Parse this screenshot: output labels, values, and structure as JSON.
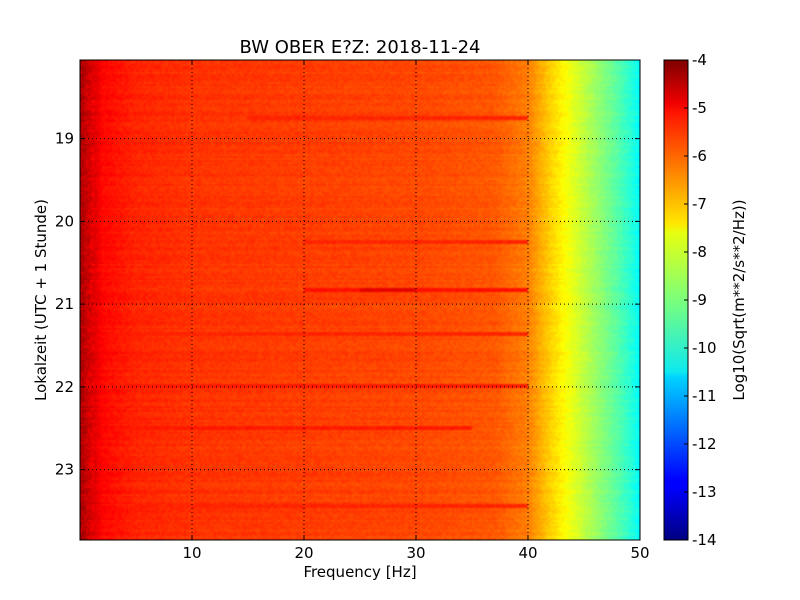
{
  "chart_data": {
    "type": "heatmap",
    "title": "BW OBER E?Z: 2018-11-24",
    "xlabel": "Frequency [Hz]",
    "ylabel": "Lokalzeit (UTC + 1 Stunde)",
    "colorbar_label": "Log10(Sqrt(m**2/s**2/Hz))",
    "colormap": "jet",
    "xlim": [
      0,
      50
    ],
    "ylim_hours": [
      18.05,
      23.85
    ],
    "y_inverted": true,
    "grid": true,
    "x_ticks": [
      {
        "value": 10,
        "label": "10"
      },
      {
        "value": 20,
        "label": "20"
      },
      {
        "value": 30,
        "label": "30"
      },
      {
        "value": 40,
        "label": "40"
      },
      {
        "value": 50,
        "label": "50"
      }
    ],
    "y_ticks": [
      {
        "value": 19,
        "label": "19"
      },
      {
        "value": 20,
        "label": "20"
      },
      {
        "value": 21,
        "label": "21"
      },
      {
        "value": 22,
        "label": "22"
      },
      {
        "value": 23,
        "label": "23"
      }
    ],
    "colorbar_range": [
      -14,
      -4
    ],
    "colorbar_ticks": [
      {
        "value": -4,
        "label": "-4"
      },
      {
        "value": -5,
        "label": "-5"
      },
      {
        "value": -6,
        "label": "-6"
      },
      {
        "value": -7,
        "label": "-7"
      },
      {
        "value": -8,
        "label": "-8"
      },
      {
        "value": -9,
        "label": "-9"
      },
      {
        "value": -10,
        "label": "-10"
      },
      {
        "value": -11,
        "label": "-11"
      },
      {
        "value": -12,
        "label": "-12"
      },
      {
        "value": -13,
        "label": "-13"
      },
      {
        "value": -14,
        "label": "-14"
      }
    ],
    "frequency_profile": [
      {
        "freq": 0,
        "value": -4.3
      },
      {
        "freq": 1,
        "value": -4.8
      },
      {
        "freq": 2,
        "value": -5.3
      },
      {
        "freq": 5,
        "value": -5.6
      },
      {
        "freq": 10,
        "value": -5.75
      },
      {
        "freq": 20,
        "value": -5.85
      },
      {
        "freq": 30,
        "value": -5.95
      },
      {
        "freq": 37,
        "value": -6.1
      },
      {
        "freq": 40,
        "value": -6.5
      },
      {
        "freq": 42,
        "value": -7.3
      },
      {
        "freq": 44,
        "value": -8.0
      },
      {
        "freq": 46,
        "value": -8.7
      },
      {
        "freq": 48,
        "value": -9.4
      },
      {
        "freq": 49.5,
        "value": -10.0
      },
      {
        "freq": 50,
        "value": -10.3
      }
    ],
    "band_features": [
      {
        "hour": 20.82,
        "freq_range": [
          20,
          40
        ],
        "value": -5.4
      },
      {
        "hour": 20.84,
        "freq_range": [
          25,
          30
        ],
        "value": -5.0
      },
      {
        "hour": 22.0,
        "freq_range": [
          0,
          40
        ],
        "value": -5.5
      },
      {
        "hour": 22.5,
        "freq_range": [
          0,
          35
        ],
        "value": -5.5
      },
      {
        "hour": 21.35,
        "freq_range": [
          0,
          40
        ],
        "value": -5.6
      },
      {
        "hour": 20.25,
        "freq_range": [
          20,
          40
        ],
        "value": -5.6
      },
      {
        "hour": 18.75,
        "freq_range": [
          15,
          40
        ],
        "value": -5.6
      },
      {
        "hour": 23.45,
        "freq_range": [
          0,
          40
        ],
        "value": -5.6
      }
    ]
  }
}
